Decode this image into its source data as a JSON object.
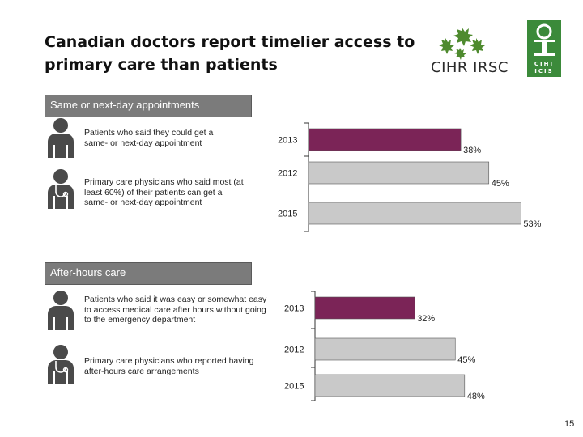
{
  "title": "Canadian doctors report timelier access to primary care than patients",
  "logos": {
    "cihr_text": "CIHR IRSC",
    "cihi_top": "CIHI",
    "cihi_bottom": "ICIS"
  },
  "sections": [
    {
      "label": "Same or next-day appointments",
      "rows": [
        {
          "icon": "patient-icon",
          "text": "Patients who said they could get a same- or next-day appointment"
        },
        {
          "icon": "physician-icon",
          "text": "Primary care physicians who said most (at least 60%) of their patients can get a same- or next-day appointment"
        }
      ]
    },
    {
      "label": "After-hours care",
      "rows": [
        {
          "icon": "patient-icon",
          "text": "Patients who said it was easy or somewhat easy to access medical care after hours without going to the emergency department"
        },
        {
          "icon": "physician-icon",
          "text": "Primary care physicians who reported having after-hours care arrangements"
        }
      ]
    }
  ],
  "chart_data": [
    {
      "type": "bar",
      "orientation": "horizontal",
      "title": "Same or next-day appointments",
      "categories": [
        "2013",
        "2012",
        "2015"
      ],
      "values": [
        38,
        45,
        53
      ],
      "value_labels": [
        "38%",
        "45%",
        "53%"
      ],
      "colors": [
        "#7b2457",
        "#c9c9c9",
        "#c9c9c9"
      ],
      "unit": "%",
      "xlim": [
        0,
        100
      ]
    },
    {
      "type": "bar",
      "orientation": "horizontal",
      "title": "After-hours care",
      "categories": [
        "2013",
        "2012",
        "2015"
      ],
      "values": [
        32,
        45,
        48
      ],
      "value_labels": [
        "32%",
        "45%",
        "48%"
      ],
      "colors": [
        "#7b2457",
        "#c9c9c9",
        "#c9c9c9"
      ],
      "unit": "%",
      "xlim": [
        0,
        100
      ]
    }
  ],
  "page_number": "15"
}
